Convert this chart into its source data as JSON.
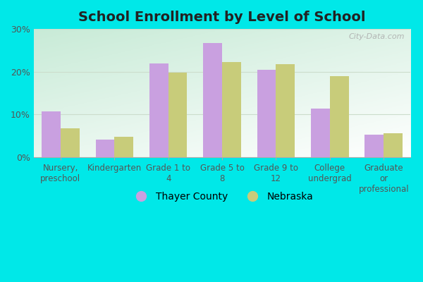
{
  "title": "School Enrollment by Level of School",
  "categories": [
    "Nursery,\npreschool",
    "Kindergarten",
    "Grade 1 to\n4",
    "Grade 5 to\n8",
    "Grade 9 to\n12",
    "College\nundergrad",
    "Graduate\nor\nprofessional"
  ],
  "thayer_values": [
    10.7,
    4.0,
    22.0,
    26.7,
    20.5,
    11.3,
    5.2
  ],
  "nebraska_values": [
    6.7,
    4.7,
    19.7,
    22.3,
    21.7,
    19.0,
    5.5
  ],
  "thayer_color": "#c9a0e0",
  "nebraska_color": "#c8cc7a",
  "ylim": [
    0,
    30
  ],
  "yticks": [
    0,
    10,
    20,
    30
  ],
  "ytick_labels": [
    "0%",
    "10%",
    "20%",
    "30%"
  ],
  "outer_bg_color": "#00e8e8",
  "legend_label_thayer": "Thayer County",
  "legend_label_nebraska": "Nebraska",
  "watermark": "City-Data.com",
  "grid_color": "#ccddcc",
  "title_fontsize": 14,
  "tick_fontsize": 8.5
}
